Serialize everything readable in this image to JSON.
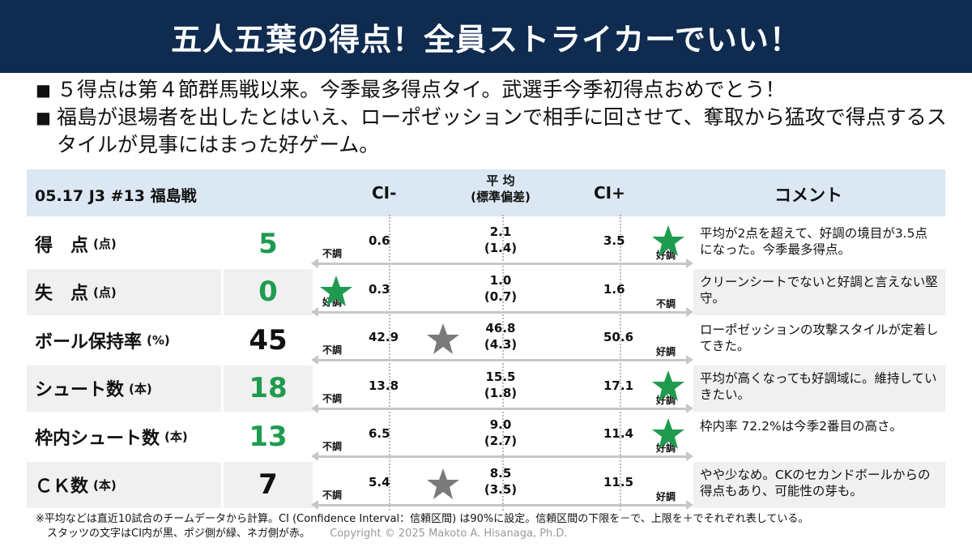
{
  "title": "五人五葉の得点！全員ストライカーでいい！",
  "bullets": [
    "５得点は第４節群馬戦以来。今季最多得点タイ。武選手今季初得点おめでとう！",
    "福島が退場者を出したとはいえ、ローポゼッションで相手に回させて、奪取から猛攻で得点するスタイルが見事にはまった好ゲーム。"
  ],
  "bullet_mark": "■",
  "table": {
    "match": "05.17 J3 #13 福島戦",
    "ci_minus": "CI-",
    "avg_line1": "平 均",
    "avg_line2": "(標準偏差)",
    "ci_plus": "CI+",
    "comment": "コメント"
  },
  "labels": {
    "bad": "不調",
    "good": "好調"
  },
  "colors": {
    "header_bg": "#0f2b4f",
    "green": "#1e9b4f",
    "star_green": "#1e9b4f",
    "star_gray": "#7a7a7a"
  },
  "rows": [
    {
      "label": "得　点",
      "unit": "(点)",
      "value": "5",
      "color": "green",
      "ci_minus": "0.6",
      "avg": "2.1",
      "sd": "(1.4)",
      "ci_plus": "3.5",
      "star": "good",
      "left_tag": "不調",
      "right_tag": "好調",
      "comment": "平均が2点を超えて、好調の境目が3.5点になった。今季最多得点。"
    },
    {
      "label": "失　点",
      "unit": "(点)",
      "value": "0",
      "color": "green",
      "ci_minus": "0.3",
      "avg": "1.0",
      "sd": "(0.7)",
      "ci_plus": "1.6",
      "star": "good-left",
      "left_tag": "好調",
      "right_tag": "不調",
      "comment": "クリーンシートでないと好調と言えない堅守。"
    },
    {
      "label": "ボール保持率",
      "unit": "(%)",
      "value": "45",
      "color": "black",
      "ci_minus": "42.9",
      "avg": "46.8",
      "sd": "(4.3)",
      "ci_plus": "50.6",
      "star": "mid",
      "left_tag": "不調",
      "right_tag": "好調",
      "comment": "ローポゼッションの攻撃スタイルが定着してきた。"
    },
    {
      "label": "シュート数",
      "unit": "(本)",
      "value": "18",
      "color": "green",
      "ci_minus": "13.8",
      "avg": "15.5",
      "sd": "(1.8)",
      "ci_plus": "17.1",
      "star": "good",
      "left_tag": "不調",
      "right_tag": "好調",
      "comment": "平均が高くなっても好調域に。維持していきたい。"
    },
    {
      "label": "枠内シュート数",
      "unit": "(本)",
      "value": "13",
      "color": "green",
      "ci_minus": "6.5",
      "avg": "9.0",
      "sd": "(2.7)",
      "ci_plus": "11.4",
      "star": "good",
      "left_tag": "不調",
      "right_tag": "好調",
      "comment": "枠内率 72.2%は今季2番目の高さ。"
    },
    {
      "label": "ＣＫ数",
      "unit": "(本)",
      "value": "7",
      "color": "black",
      "ci_minus": "5.4",
      "avg": "8.5",
      "sd": "(3.5)",
      "ci_plus": "11.5",
      "star": "mid",
      "left_tag": "不調",
      "right_tag": "好調",
      "comment": "やや少なめ。CKのセカンドボールからの得点もあり、可能性の芽も。"
    }
  ],
  "footnote_1": "※平均などは直近10試合のチームデータから計算。CI (Confidence Interval：信頼区間) は90%に設定。信頼区間の下限を－で、上限を＋でそれぞれ表している。",
  "footnote_2": "スタッツの文字はCI内が黒、ポジ側が緑、ネガ側が赤。",
  "copyright": "Copyright © 2025 Makoto A. Hisanaga, Ph.D."
}
